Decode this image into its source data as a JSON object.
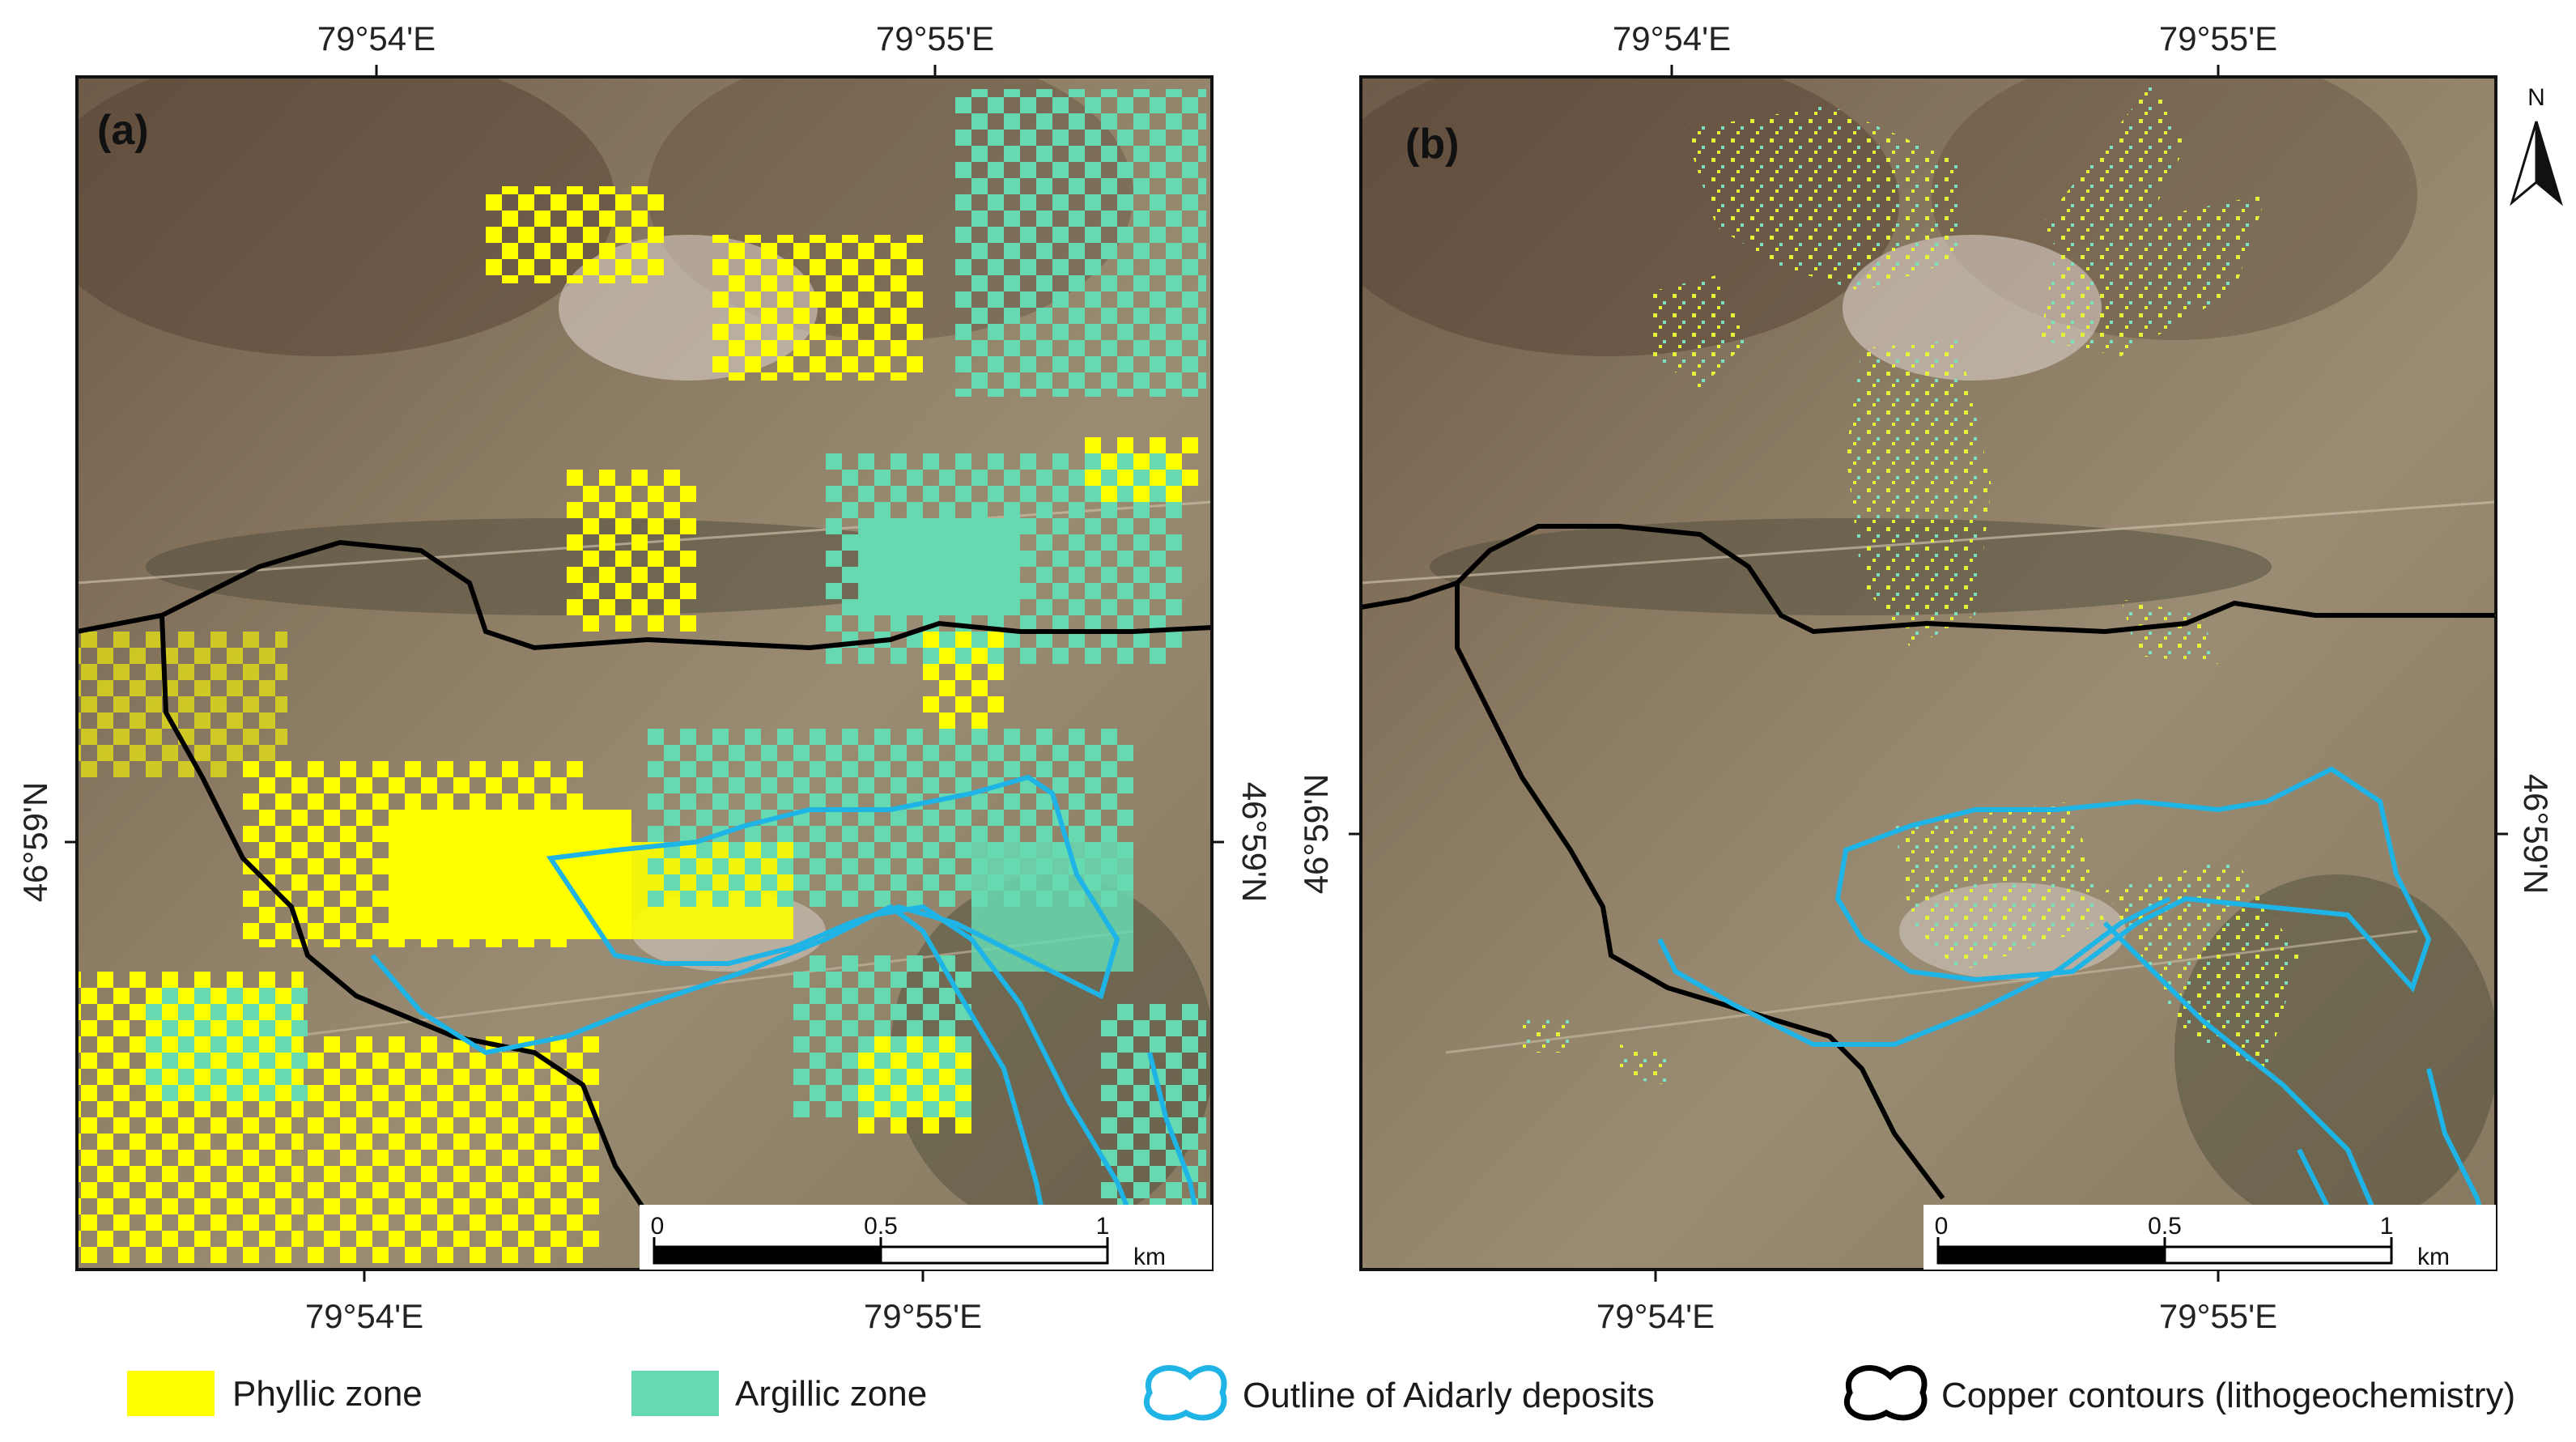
{
  "panels": [
    {
      "id": "a",
      "label": "(a)",
      "top_ticks": [
        "79°54'E",
        "79°55'E"
      ],
      "bottom_ticks": [
        "79°54'E",
        "79°55'E"
      ],
      "left_tick": "46°59'N",
      "right_tick": "46°59'N",
      "scale": {
        "ticks": [
          "0",
          "0.5",
          "1"
        ],
        "unit": "km"
      }
    },
    {
      "id": "b",
      "label": "(b)",
      "top_ticks": [
        "79°54'E",
        "79°55'E"
      ],
      "bottom_ticks": [
        "79°54'E",
        "79°55'E"
      ],
      "left_tick": "46°59'N",
      "right_tick": "46°59'N",
      "scale": {
        "ticks": [
          "0",
          "0.5",
          "1"
        ],
        "unit": "km"
      }
    }
  ],
  "north_arrow": {
    "label": "N"
  },
  "legend": [
    {
      "label": "Phyllic zone",
      "color": "#ffff00",
      "kind": "swatch"
    },
    {
      "label": "Argillic zone",
      "color": "#66d9b0",
      "kind": "swatch"
    },
    {
      "label": "Outline of Aidarly deposits",
      "color": "#1eb4e6",
      "kind": "outline-icon"
    },
    {
      "label": "Copper contours (lithogeochemistry)",
      "color": "#000000",
      "kind": "outline-icon"
    }
  ]
}
